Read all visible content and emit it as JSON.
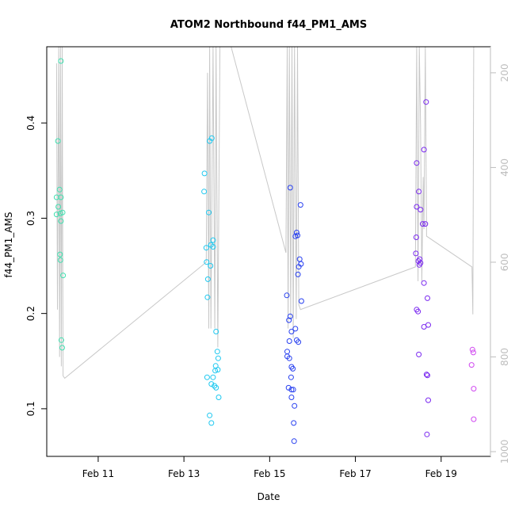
{
  "chart_data": {
    "type": "scatter",
    "title": "ATOM2 Northbound f44_PM1_AMS",
    "xlabel": "Date",
    "ylabel": "f44_PM1_AMS",
    "x_ticks": [
      {
        "label": "Feb 11",
        "day": 11
      },
      {
        "label": "Feb 13",
        "day": 13
      },
      {
        "label": "Feb 15",
        "day": 15
      },
      {
        "label": "Feb 17",
        "day": 17
      },
      {
        "label": "Feb 19",
        "day": 19
      }
    ],
    "y_ticks": [
      "0.1",
      "0.2",
      "0.3",
      "0.4"
    ],
    "y_right_ticks": [
      "200",
      "400",
      "600",
      "800",
      "1000"
    ],
    "xlim_day": [
      9.8,
      20.15
    ],
    "ylim": [
      0.05,
      0.48
    ],
    "y_right_lim": [
      1010,
      145
    ],
    "y_right_scale": "reversed",
    "grid": false,
    "marker": "open-circle",
    "line_color": "#c8c8c8",
    "series": [
      {
        "color": "#40e0b0",
        "points": [
          [
            10.06,
            0.381
          ],
          [
            10.03,
            0.322
          ],
          [
            10.1,
            0.33
          ],
          [
            10.13,
            0.322
          ],
          [
            10.07,
            0.312
          ],
          [
            10.03,
            0.304
          ],
          [
            10.17,
            0.306
          ],
          [
            10.12,
            0.305
          ],
          [
            10.13,
            0.297
          ],
          [
            10.11,
            0.262
          ],
          [
            10.12,
            0.256
          ],
          [
            10.18,
            0.24
          ],
          [
            10.14,
            0.172
          ],
          [
            10.16,
            0.164
          ],
          [
            10.13,
            0.465
          ]
        ]
      },
      {
        "color": "#1ec8f0",
        "points": [
          [
            13.48,
            0.347
          ],
          [
            13.47,
            0.328
          ],
          [
            13.6,
            0.381
          ],
          [
            13.65,
            0.384
          ],
          [
            13.58,
            0.306
          ],
          [
            13.68,
            0.277
          ],
          [
            13.52,
            0.269
          ],
          [
            13.63,
            0.272
          ],
          [
            13.68,
            0.27
          ],
          [
            13.53,
            0.254
          ],
          [
            13.62,
            0.25
          ],
          [
            13.56,
            0.236
          ],
          [
            13.55,
            0.217
          ],
          [
            13.75,
            0.181
          ],
          [
            13.78,
            0.16
          ],
          [
            13.8,
            0.153
          ],
          [
            13.74,
            0.145
          ],
          [
            13.79,
            0.141
          ],
          [
            13.73,
            0.14
          ],
          [
            13.54,
            0.133
          ],
          [
            13.68,
            0.133
          ],
          [
            13.64,
            0.126
          ],
          [
            13.71,
            0.124
          ],
          [
            13.75,
            0.122
          ],
          [
            13.81,
            0.112
          ],
          [
            13.6,
            0.093
          ],
          [
            13.64,
            0.085
          ]
        ]
      },
      {
        "color": "#2840f0",
        "points": [
          [
            15.48,
            0.332
          ],
          [
            15.72,
            0.314
          ],
          [
            15.63,
            0.285
          ],
          [
            15.6,
            0.281
          ],
          [
            15.65,
            0.282
          ],
          [
            15.7,
            0.257
          ],
          [
            15.73,
            0.252
          ],
          [
            15.68,
            0.249
          ],
          [
            15.66,
            0.241
          ],
          [
            15.4,
            0.219
          ],
          [
            15.74,
            0.213
          ],
          [
            15.48,
            0.197
          ],
          [
            15.45,
            0.193
          ],
          [
            15.6,
            0.184
          ],
          [
            15.51,
            0.181
          ],
          [
            15.46,
            0.171
          ],
          [
            15.63,
            0.172
          ],
          [
            15.67,
            0.17
          ],
          [
            15.41,
            0.16
          ],
          [
            15.41,
            0.155
          ],
          [
            15.46,
            0.153
          ],
          [
            15.51,
            0.144
          ],
          [
            15.54,
            0.142
          ],
          [
            15.5,
            0.133
          ],
          [
            15.44,
            0.122
          ],
          [
            15.51,
            0.12
          ],
          [
            15.55,
            0.12
          ],
          [
            15.51,
            0.112
          ],
          [
            15.58,
            0.103
          ],
          [
            15.56,
            0.085
          ],
          [
            15.57,
            0.066
          ]
        ]
      },
      {
        "color": "#7a28f0",
        "points": [
          [
            18.65,
            0.422
          ],
          [
            18.6,
            0.372
          ],
          [
            18.43,
            0.358
          ],
          [
            18.48,
            0.328
          ],
          [
            18.43,
            0.312
          ],
          [
            18.52,
            0.309
          ],
          [
            18.57,
            0.294
          ],
          [
            18.63,
            0.294
          ],
          [
            18.42,
            0.28
          ],
          [
            18.41,
            0.263
          ],
          [
            18.5,
            0.257
          ],
          [
            18.47,
            0.255
          ],
          [
            18.52,
            0.253
          ],
          [
            18.49,
            0.251
          ],
          [
            18.6,
            0.232
          ],
          [
            18.68,
            0.216
          ],
          [
            18.43,
            0.204
          ],
          [
            18.46,
            0.202
          ],
          [
            18.7,
            0.188
          ],
          [
            18.6,
            0.186
          ],
          [
            18.48,
            0.157
          ],
          [
            18.66,
            0.136
          ],
          [
            18.68,
            0.135
          ],
          [
            18.7,
            0.109
          ],
          [
            18.67,
            0.073
          ]
        ]
      },
      {
        "color": "#d048f0",
        "points": [
          [
            19.73,
            0.162
          ],
          [
            19.75,
            0.159
          ],
          [
            19.71,
            0.146
          ],
          [
            19.76,
            0.121
          ],
          [
            19.76,
            0.089
          ]
        ]
      }
    ],
    "altitude_trace": [
      [
        10.03,
        180
      ],
      [
        10.05,
        700
      ],
      [
        10.08,
        145
      ],
      [
        10.1,
        800
      ],
      [
        10.12,
        145
      ],
      [
        10.14,
        820
      ],
      [
        10.16,
        145
      ],
      [
        10.18,
        840
      ],
      [
        10.22,
        845
      ],
      [
        13.52,
        600
      ],
      [
        13.55,
        200
      ],
      [
        13.58,
        740
      ],
      [
        13.6,
        145
      ],
      [
        13.63,
        740
      ],
      [
        13.68,
        145
      ],
      [
        13.72,
        740
      ],
      [
        13.75,
        145
      ],
      [
        13.79,
        780
      ],
      [
        13.84,
        145
      ],
      [
        14.1,
        145
      ],
      [
        15.38,
        580
      ],
      [
        15.41,
        145
      ],
      [
        15.43,
        740
      ],
      [
        15.46,
        145
      ],
      [
        15.49,
        720
      ],
      [
        15.52,
        145
      ],
      [
        15.55,
        760
      ],
      [
        15.58,
        145
      ],
      [
        15.62,
        720
      ],
      [
        15.65,
        145
      ],
      [
        15.68,
        690
      ],
      [
        15.72,
        700
      ],
      [
        18.4,
        610
      ],
      [
        18.43,
        145
      ],
      [
        18.46,
        640
      ],
      [
        18.49,
        145
      ],
      [
        18.52,
        310
      ],
      [
        18.55,
        640
      ],
      [
        18.58,
        420
      ],
      [
        18.6,
        530
      ],
      [
        18.63,
        145
      ],
      [
        18.66,
        545
      ],
      [
        19.72,
        610
      ],
      [
        19.74,
        710
      ],
      [
        19.76,
        145
      ]
    ]
  }
}
